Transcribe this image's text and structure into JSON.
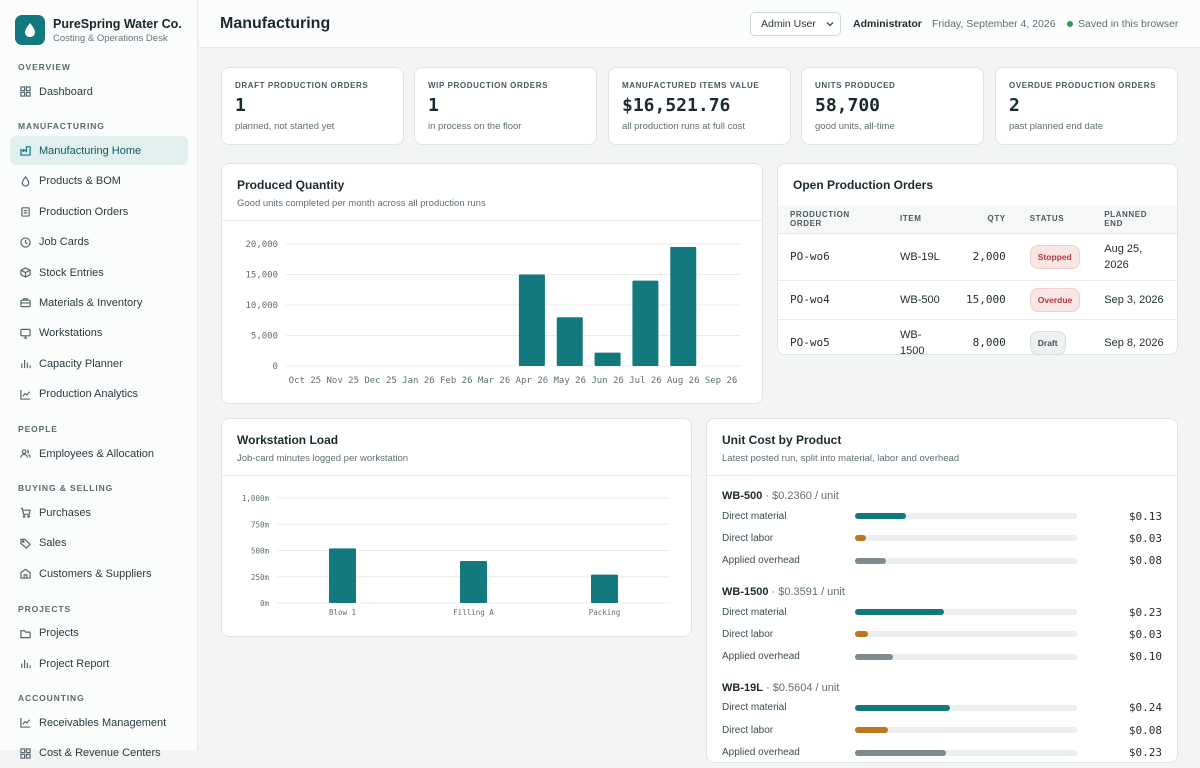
{
  "app": {
    "name": "PureSpring Water Co.",
    "subtitle": "Costing & Operations Desk"
  },
  "sidebar": {
    "sections": [
      {
        "title": "Overview",
        "items": [
          {
            "label": "Dashboard",
            "icon": "grid-icon"
          }
        ]
      },
      {
        "title": "Manufacturing",
        "items": [
          {
            "label": "Manufacturing Home",
            "icon": "factory-icon",
            "active": true
          },
          {
            "label": "Products & BOM",
            "icon": "drop-icon"
          },
          {
            "label": "Production Orders",
            "icon": "clipboard-icon"
          },
          {
            "label": "Job Cards",
            "icon": "clock-icon"
          },
          {
            "label": "Stock Entries",
            "icon": "box-icon"
          },
          {
            "label": "Materials & Inventory",
            "icon": "briefcase-icon"
          },
          {
            "label": "Workstations",
            "icon": "monitor-icon"
          },
          {
            "label": "Capacity Planner",
            "icon": "bars-icon"
          },
          {
            "label": "Production Analytics",
            "icon": "trend-icon"
          }
        ]
      },
      {
        "title": "People",
        "items": [
          {
            "label": "Employees & Allocation",
            "icon": "users-icon"
          }
        ]
      },
      {
        "title": "Buying & Selling",
        "items": [
          {
            "label": "Purchases",
            "icon": "cart-icon"
          },
          {
            "label": "Sales",
            "icon": "tag-icon"
          },
          {
            "label": "Customers & Suppliers",
            "icon": "building-icon"
          }
        ]
      },
      {
        "title": "Projects",
        "items": [
          {
            "label": "Projects",
            "icon": "folder-icon"
          },
          {
            "label": "Project Report",
            "icon": "bars-icon"
          }
        ]
      },
      {
        "title": "Accounting",
        "items": [
          {
            "label": "Receivables Management",
            "icon": "trend-icon"
          },
          {
            "label": "Cost & Revenue Centers",
            "icon": "grid-icon"
          }
        ]
      }
    ]
  },
  "header": {
    "title": "Manufacturing",
    "user_select": "Admin User",
    "role": "Administrator",
    "date": "Friday, September 4, 2026",
    "saved": "Saved in this browser"
  },
  "kpis": [
    {
      "label": "Draft Production Orders",
      "value": "1",
      "sub": "planned, not started yet"
    },
    {
      "label": "WIP Production Orders",
      "value": "1",
      "sub": "in process on the floor"
    },
    {
      "label": "Manufactured Items Value",
      "value": "$16,521.76",
      "sub": "all production runs at full cost"
    },
    {
      "label": "Units Produced",
      "value": "58,700",
      "sub": "good units, all-time"
    },
    {
      "label": "Overdue Production Orders",
      "value": "2",
      "sub": "past planned end date"
    }
  ],
  "produced": {
    "title": "Produced Quantity",
    "subtitle": "Good units completed per month across all production runs"
  },
  "orders": {
    "title": "Open Production Orders",
    "columns": [
      "Production Order",
      "Item",
      "Qty",
      "Status",
      "Planned End"
    ],
    "rows": [
      {
        "order": "PO-wo6",
        "item": "WB-19L",
        "qty": "2,000",
        "status": "Stopped",
        "status_class": "stopped",
        "end": "Aug 25, 2026"
      },
      {
        "order": "PO-wo4",
        "item": "WB-500",
        "qty": "15,000",
        "status": "Overdue",
        "status_class": "overdue",
        "end": "Sep 3, 2026"
      },
      {
        "order": "PO-wo5",
        "item": "WB-1500",
        "qty": "8,000",
        "status": "Draft",
        "status_class": "draft",
        "end": "Sep 8, 2026"
      }
    ]
  },
  "workstation": {
    "title": "Workstation Load",
    "subtitle": "Job-card minutes logged per workstation"
  },
  "cost": {
    "title": "Unit Cost by Product",
    "subtitle": "Latest posted run, split into material, labor and overhead",
    "colors": {
      "material": "#127a7f",
      "labor": "#c0761a",
      "overhead": "#7f8c8f"
    },
    "products": [
      {
        "name": "WB-500",
        "unit": "· $0.2360 / unit",
        "rows": [
          {
            "label": "Direct material",
            "value": "$0.13",
            "share": 0.23,
            "kind": "material"
          },
          {
            "label": "Direct labor",
            "value": "$0.03",
            "share": 0.05,
            "kind": "labor"
          },
          {
            "label": "Applied overhead",
            "value": "$0.08",
            "share": 0.14,
            "kind": "overhead"
          }
        ]
      },
      {
        "name": "WB-1500",
        "unit": "· $0.3591 / unit",
        "rows": [
          {
            "label": "Direct material",
            "value": "$0.23",
            "share": 0.4,
            "kind": "material"
          },
          {
            "label": "Direct labor",
            "value": "$0.03",
            "share": 0.06,
            "kind": "labor"
          },
          {
            "label": "Applied overhead",
            "value": "$0.10",
            "share": 0.17,
            "kind": "overhead"
          }
        ]
      },
      {
        "name": "WB-19L",
        "unit": "· $0.5604 / unit",
        "rows": [
          {
            "label": "Direct material",
            "value": "$0.24",
            "share": 0.43,
            "kind": "material"
          },
          {
            "label": "Direct labor",
            "value": "$0.08",
            "share": 0.15,
            "kind": "labor"
          },
          {
            "label": "Applied overhead",
            "value": "$0.23",
            "share": 0.41,
            "kind": "overhead"
          }
        ]
      }
    ]
  },
  "chart_data": [
    {
      "type": "bar",
      "title": "Produced Quantity",
      "categories": [
        "Oct 25",
        "Nov 25",
        "Dec 25",
        "Jan 26",
        "Feb 26",
        "Mar 26",
        "Apr 26",
        "May 26",
        "Jun 26",
        "Jul 26",
        "Aug 26",
        "Sep 26"
      ],
      "values": [
        0,
        0,
        0,
        0,
        0,
        0,
        15000,
        8000,
        2200,
        14000,
        19500,
        0
      ],
      "yticks": [
        "0",
        "5,000",
        "10,000",
        "15,000",
        "20,000"
      ],
      "ylim": [
        0,
        20000
      ],
      "color": "#127a7f",
      "grid": true
    },
    {
      "type": "bar",
      "title": "Workstation Load",
      "categories": [
        "Blow 1",
        "Filling A",
        "Packing"
      ],
      "values": [
        520,
        400,
        270
      ],
      "yticks": [
        "0m",
        "250m",
        "500m",
        "750m",
        "1,000m"
      ],
      "ylim": [
        0,
        1000
      ],
      "color": "#127a7f",
      "grid": true
    }
  ]
}
